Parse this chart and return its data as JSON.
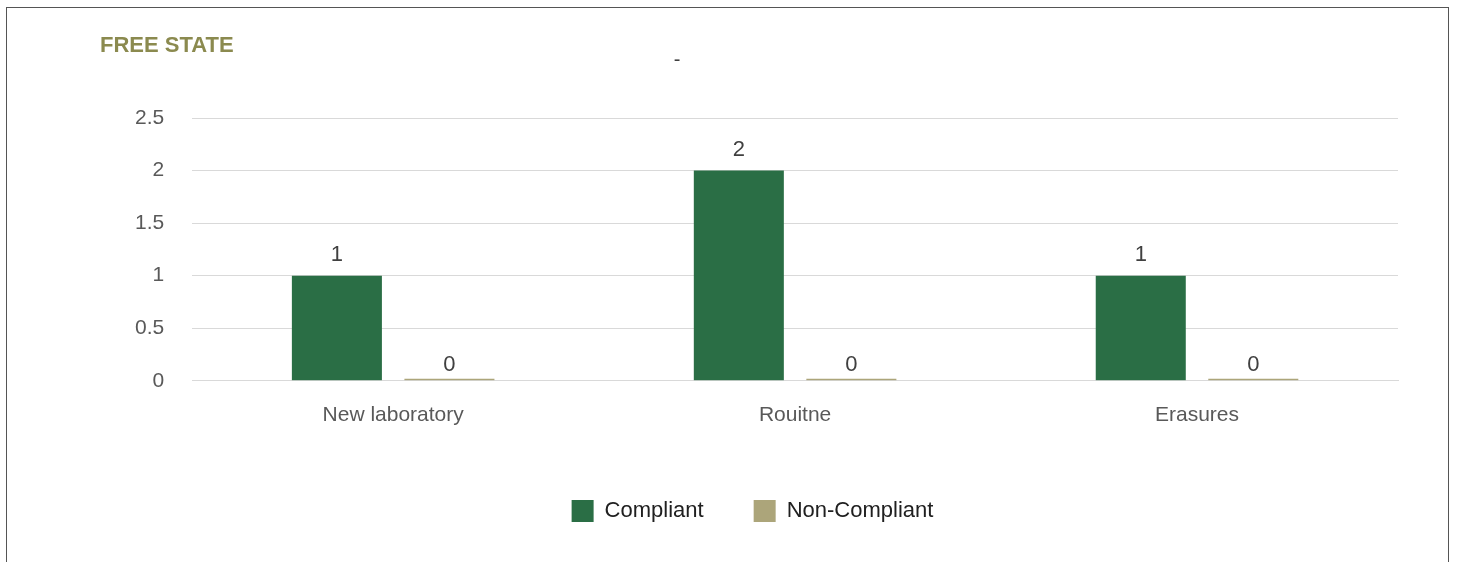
{
  "chart_data": {
    "type": "bar",
    "title": "FREE STATE",
    "subtitle": "-",
    "categories": [
      "New laboratory",
      "Rouitne",
      "Erasures"
    ],
    "series": [
      {
        "name": "Compliant",
        "color": "#2a6e45",
        "values": [
          1,
          2,
          1
        ]
      },
      {
        "name": "Non-Compliant",
        "color": "#aca57a",
        "values": [
          0,
          0,
          0
        ]
      }
    ],
    "ylim": [
      0,
      2.5
    ],
    "yticks": [
      0,
      0.5,
      1,
      1.5,
      2,
      2.5
    ],
    "grid": "y",
    "legend": "bottom",
    "data_labels": true
  }
}
